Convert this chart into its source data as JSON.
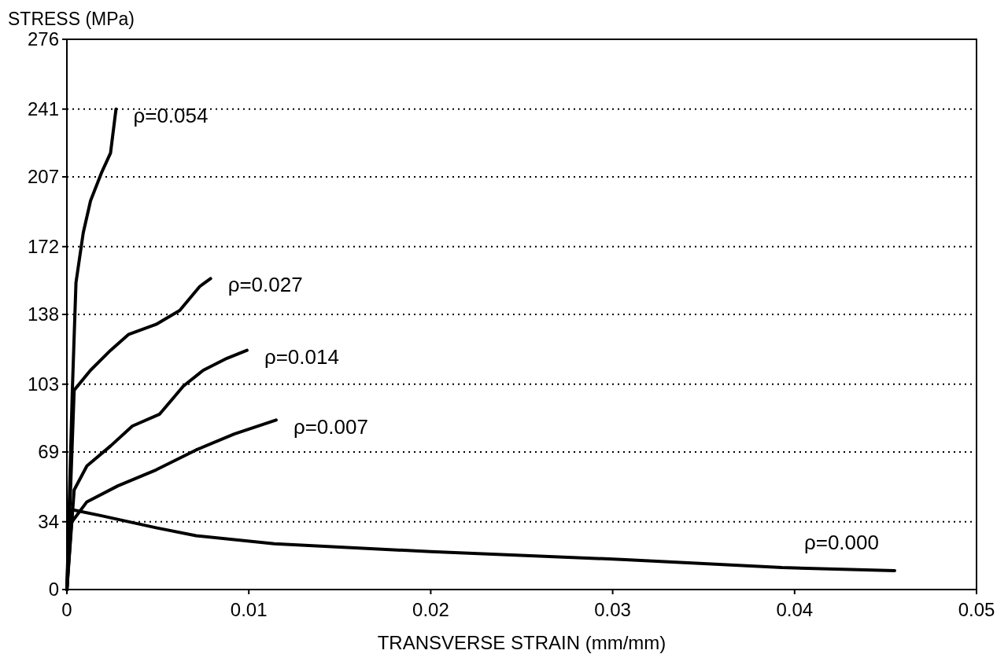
{
  "chart_data": {
    "type": "line",
    "ylabel": "STRESS (MPa)",
    "xlabel": "TRANSVERSE STRAIN (mm/mm)",
    "xlim": [
      0,
      0.05
    ],
    "xticks": [
      {
        "value": 0,
        "label": "0"
      },
      0.01,
      0.02,
      0.03,
      0.04,
      0.05
    ],
    "ylim": [
      0,
      276
    ],
    "yticks": [
      0,
      34,
      69,
      103,
      138,
      172,
      207,
      241,
      276
    ],
    "grid": "y",
    "series": [
      {
        "name": "ρ=0.054",
        "color": "#000000",
        "x": [
          0,
          0.0003,
          0.0005,
          0.0009,
          0.0013,
          0.0019,
          0.0024,
          0.0027
        ],
        "values": [
          0,
          100,
          154,
          179,
          195,
          209,
          219,
          241
        ]
      },
      {
        "name": "ρ=0.027",
        "color": "#000000",
        "x": [
          0,
          0.0004,
          0.0013,
          0.0024,
          0.0034,
          0.0049,
          0.0062,
          0.0073,
          0.0079
        ],
        "values": [
          0,
          100,
          110,
          120,
          128,
          133,
          140,
          152,
          156
        ]
      },
      {
        "name": "ρ=0.014",
        "color": "#000000",
        "x": [
          0,
          0.0004,
          0.0011,
          0.0024,
          0.0036,
          0.0051,
          0.0064,
          0.0075,
          0.0088,
          0.0099
        ],
        "values": [
          0,
          50,
          62,
          72,
          82,
          88,
          102,
          110,
          116,
          120
        ]
      },
      {
        "name": "ρ=0.007",
        "color": "#000000",
        "x": [
          0,
          0.0002,
          0.0011,
          0.0028,
          0.0049,
          0.0071,
          0.0092,
          0.0115
        ],
        "values": [
          0,
          33,
          44,
          52,
          60,
          70,
          78,
          85
        ]
      },
      {
        "name": "ρ=0.000",
        "color": "#000000",
        "x": [
          0,
          0.0003,
          0.0019,
          0.0049,
          0.0071,
          0.0114,
          0.02,
          0.0307,
          0.0393,
          0.0455
        ],
        "values": [
          0,
          40,
          37,
          31,
          27,
          23,
          19,
          15,
          11,
          9.5
        ]
      }
    ]
  }
}
